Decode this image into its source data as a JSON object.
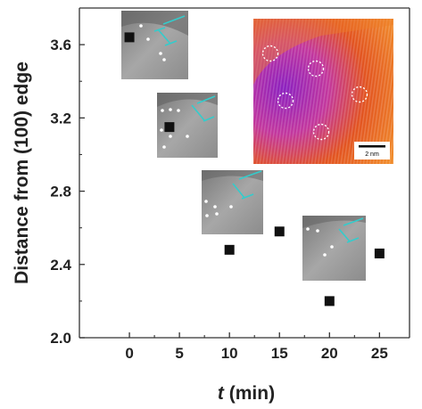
{
  "chart_data": {
    "type": "scatter",
    "xlabel_var": "t",
    "xlabel_unit": " (min)",
    "ylabel": "Distance from (100) edge",
    "xlim": [
      -5,
      28
    ],
    "ylim": [
      2.0,
      3.8
    ],
    "xticks": [
      0,
      5,
      10,
      15,
      20,
      25
    ],
    "yticks": [
      2.0,
      2.4,
      2.8,
      3.2,
      3.6
    ],
    "grid": false,
    "points": [
      {
        "x": 0,
        "y": 3.64
      },
      {
        "x": 4,
        "y": 3.15
      },
      {
        "x": 10,
        "y": 2.48
      },
      {
        "x": 15,
        "y": 2.58
      },
      {
        "x": 20,
        "y": 2.2
      },
      {
        "x": 25,
        "y": 2.46
      }
    ],
    "marker": "filled-square",
    "marker_color": "#111111",
    "inset_scale_bar_label": "2 nm"
  },
  "colors": {
    "axis": "#333333",
    "inset_cyan": "#33cccc",
    "thermal_base": "#e2531f"
  }
}
